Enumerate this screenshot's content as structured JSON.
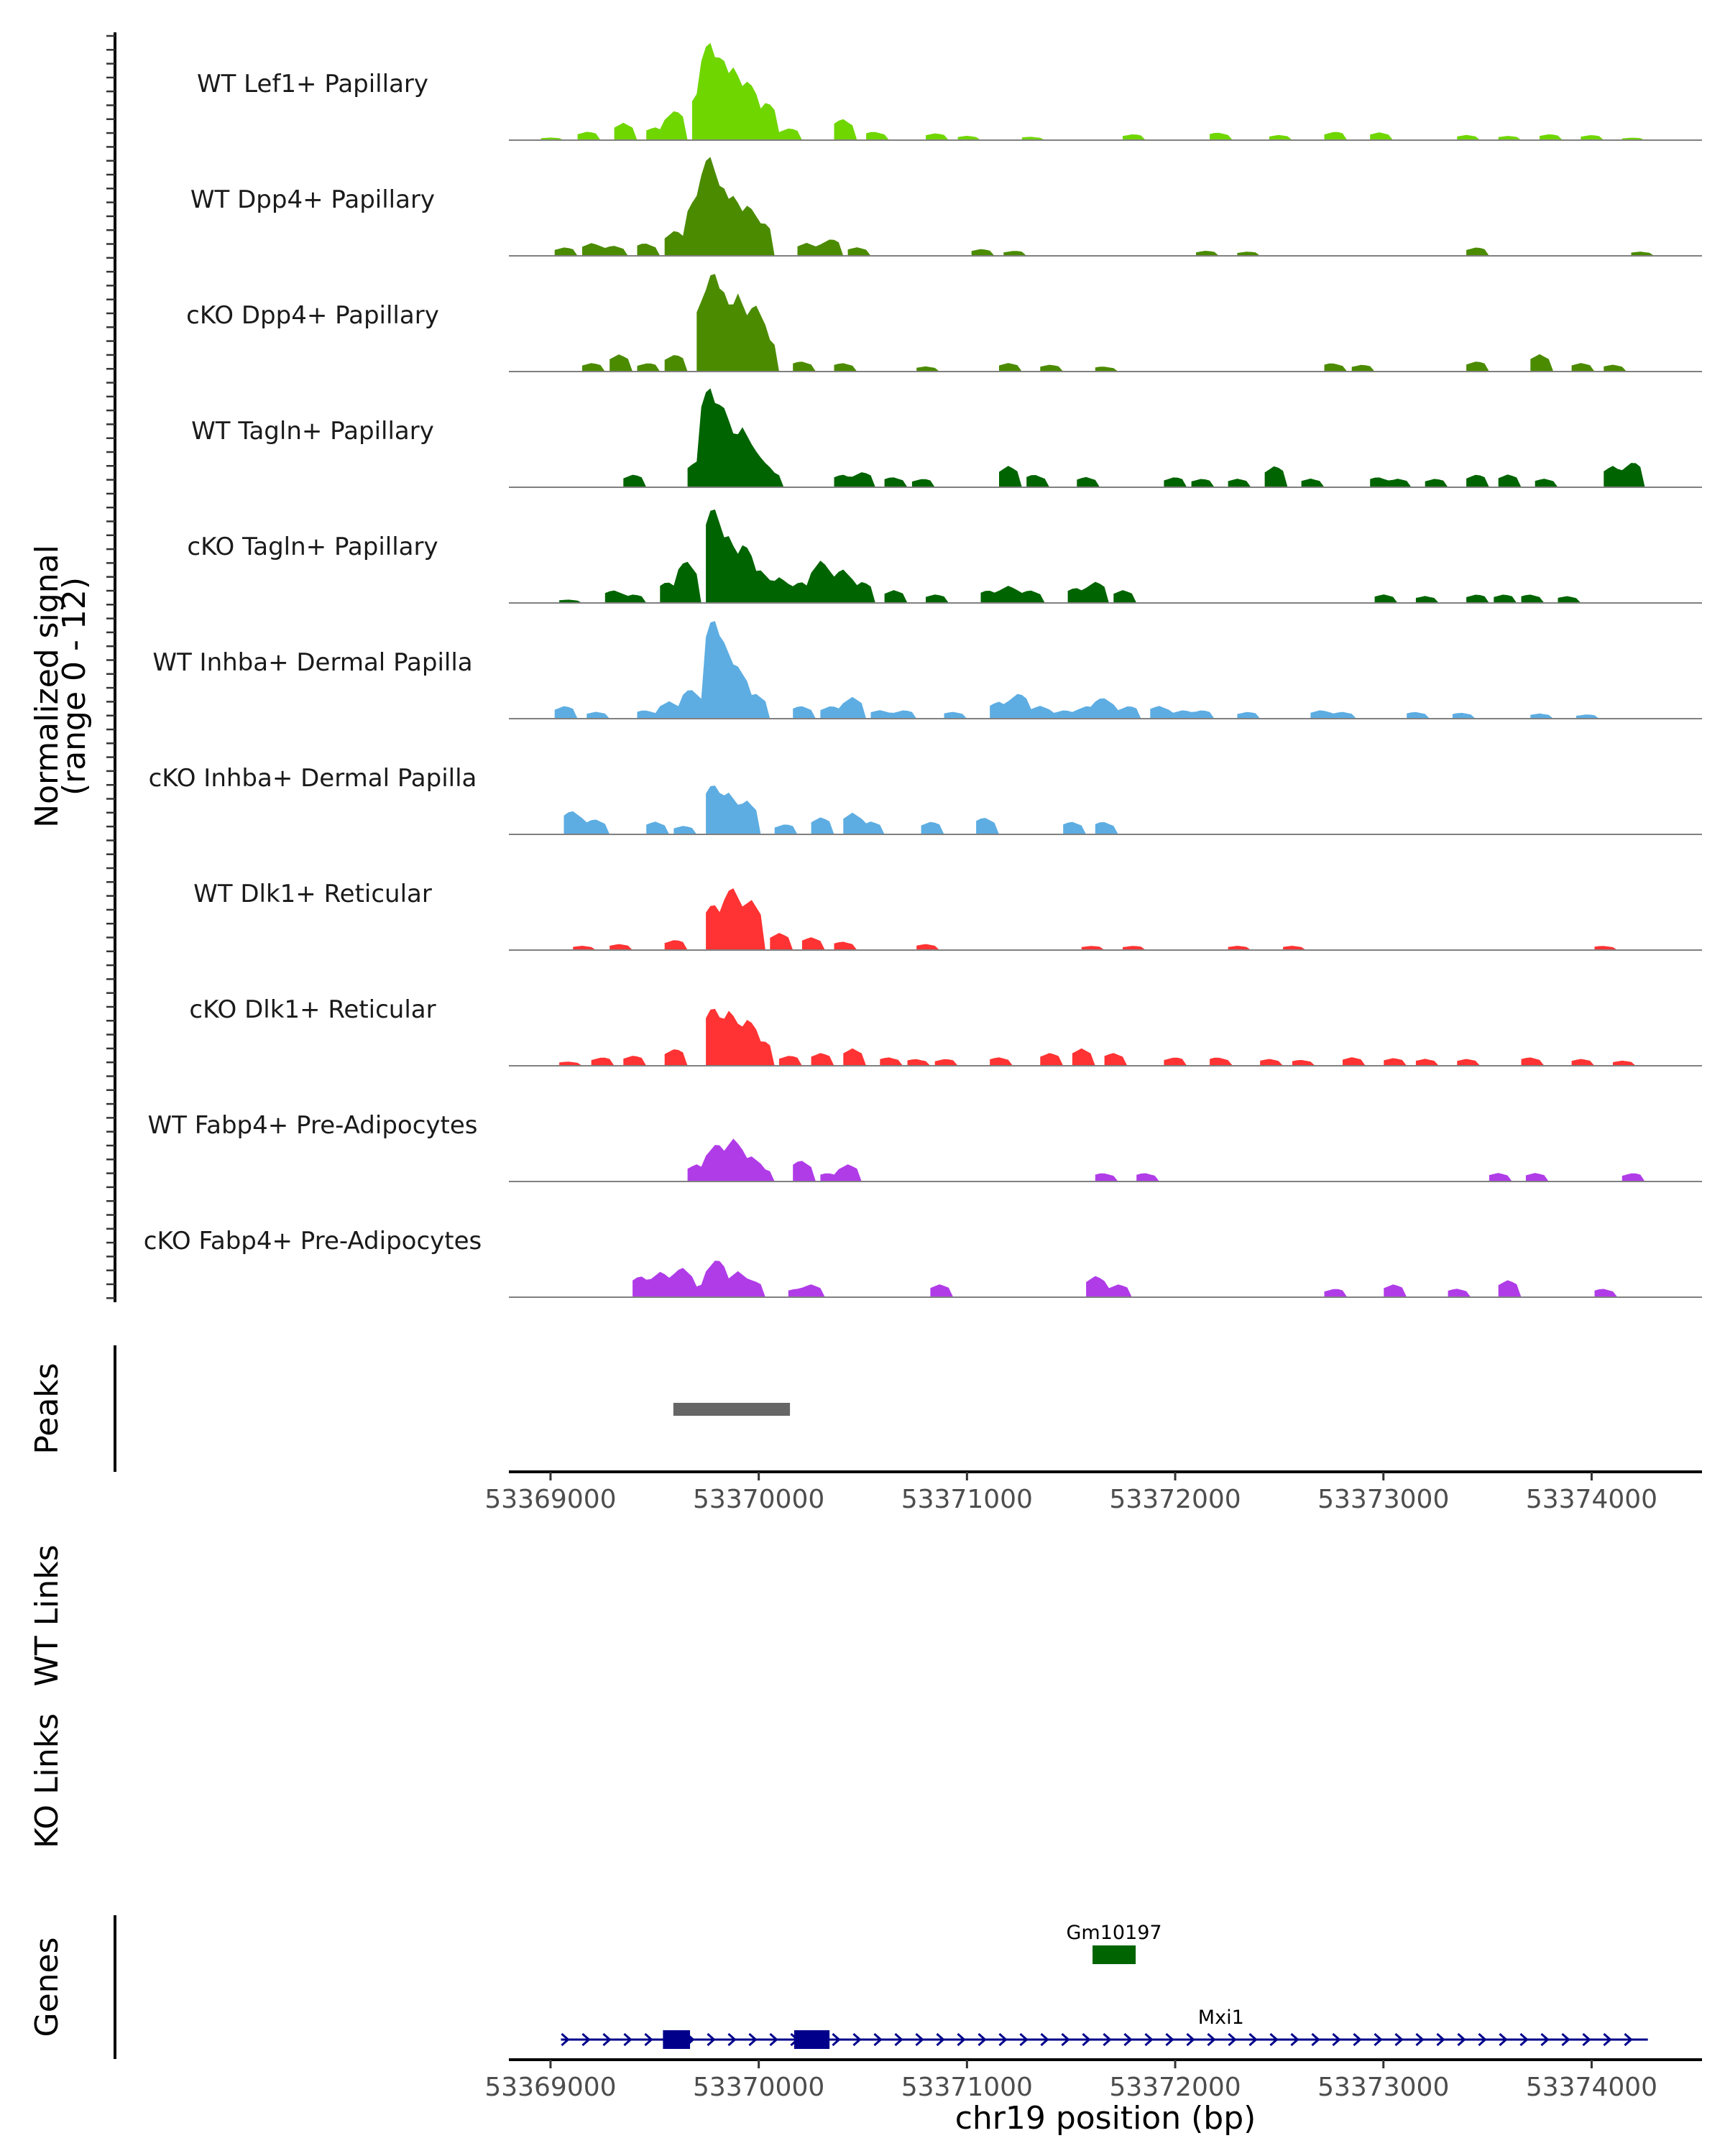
{
  "chart_data": {
    "type": "area",
    "chromosome": "chr19",
    "xlabel": "chr19 position (bp)",
    "xlim": [
      53368800,
      53374530
    ],
    "x_ticks": [
      53369000,
      53370000,
      53371000,
      53372000,
      53373000,
      53374000
    ],
    "x_tick_labels": [
      "53369000",
      "53370000",
      "53371000",
      "53372000",
      "53373000",
      "53374000"
    ],
    "ylabel": "Normalized signal",
    "ylabel_range": "(range 0 - 12)",
    "ylim": [
      0,
      12
    ],
    "tracks": [
      {
        "name": "WT Lef1+ Papillary",
        "color": "#6fd600",
        "peaks": [
          [
            53369000,
            0.3
          ],
          [
            53369180,
            1.0
          ],
          [
            53369350,
            2.0
          ],
          [
            53369500,
            1.5
          ],
          [
            53369600,
            3.5
          ],
          [
            53369720,
            6.0
          ],
          [
            53369760,
            11.8
          ],
          [
            53369820,
            10.0
          ],
          [
            53369880,
            8.5
          ],
          [
            53369950,
            7.0
          ],
          [
            53370040,
            4.5
          ],
          [
            53370150,
            1.4
          ],
          [
            53370400,
            2.5
          ],
          [
            53370550,
            1.0
          ],
          [
            53370850,
            0.8
          ],
          [
            53371000,
            0.5
          ],
          [
            53371300,
            0.4
          ],
          [
            53371800,
            0.7
          ],
          [
            53372200,
            0.9
          ],
          [
            53372500,
            0.6
          ],
          [
            53372770,
            1.0
          ],
          [
            53372980,
            0.9
          ],
          [
            53373400,
            0.6
          ],
          [
            53373600,
            0.5
          ],
          [
            53373800,
            0.7
          ],
          [
            53374000,
            0.6
          ],
          [
            53374200,
            0.3
          ]
        ]
      },
      {
        "name": "WT Dpp4+ Papillary",
        "color": "#4b8b00",
        "peaks": [
          [
            53369070,
            1.0
          ],
          [
            53369200,
            1.5
          ],
          [
            53369300,
            1.2
          ],
          [
            53369450,
            1.5
          ],
          [
            53369600,
            3.0
          ],
          [
            53369700,
            7.0
          ],
          [
            53369760,
            12.0
          ],
          [
            53369820,
            8.5
          ],
          [
            53369880,
            7.0
          ],
          [
            53369950,
            6.0
          ],
          [
            53370020,
            4.0
          ],
          [
            53370230,
            1.5
          ],
          [
            53370350,
            2.0
          ],
          [
            53370470,
            1.0
          ],
          [
            53371070,
            0.8
          ],
          [
            53371230,
            0.6
          ],
          [
            53372150,
            0.6
          ],
          [
            53372350,
            0.5
          ],
          [
            53373450,
            1.0
          ],
          [
            53374230,
            0.5
          ]
        ]
      },
      {
        "name": "cKO Dpp4+ Papillary",
        "color": "#4b8b00",
        "peaks": [
          [
            53369200,
            1.0
          ],
          [
            53369330,
            2.0
          ],
          [
            53369470,
            1.0
          ],
          [
            53369600,
            2.0
          ],
          [
            53369740,
            9.0
          ],
          [
            53369780,
            12.0
          ],
          [
            53369820,
            10.0
          ],
          [
            53369900,
            9.0
          ],
          [
            53369980,
            8.0
          ],
          [
            53370040,
            4.0
          ],
          [
            53370200,
            1.2
          ],
          [
            53370400,
            1.0
          ],
          [
            53370800,
            0.6
          ],
          [
            53371200,
            1.0
          ],
          [
            53371400,
            0.8
          ],
          [
            53371650,
            0.6
          ],
          [
            53372750,
            1.0
          ],
          [
            53372900,
            0.8
          ],
          [
            53373450,
            1.2
          ],
          [
            53373750,
            2.0
          ],
          [
            53373950,
            1.0
          ],
          [
            53374100,
            0.8
          ]
        ]
      },
      {
        "name": "WT Tagln+ Papillary",
        "color": "#006400",
        "peaks": [
          [
            53369400,
            1.5
          ],
          [
            53369700,
            3.0
          ],
          [
            53369760,
            12.0
          ],
          [
            53369820,
            10.0
          ],
          [
            53369860,
            7.0
          ],
          [
            53369920,
            7.0
          ],
          [
            53369960,
            5.0
          ],
          [
            53370000,
            3.5
          ],
          [
            53370050,
            2.0
          ],
          [
            53370400,
            1.5
          ],
          [
            53370500,
            1.8
          ],
          [
            53370640,
            1.2
          ],
          [
            53370790,
            1.0
          ],
          [
            53371200,
            2.5
          ],
          [
            53371320,
            1.5
          ],
          [
            53371570,
            1.2
          ],
          [
            53372000,
            1.2
          ],
          [
            53372130,
            1.0
          ],
          [
            53372300,
            1.0
          ],
          [
            53372480,
            2.5
          ],
          [
            53372650,
            1.0
          ],
          [
            53372970,
            1.2
          ],
          [
            53373070,
            1.0
          ],
          [
            53373250,
            1.0
          ],
          [
            53373450,
            1.5
          ],
          [
            53373600,
            1.5
          ],
          [
            53373770,
            1.0
          ],
          [
            53374100,
            2.5
          ],
          [
            53374200,
            3.0
          ]
        ]
      },
      {
        "name": "cKO Tagln+ Papillary",
        "color": "#006400",
        "peaks": [
          [
            53369080,
            0.4
          ],
          [
            53369300,
            1.5
          ],
          [
            53369400,
            1.0
          ],
          [
            53369560,
            2.5
          ],
          [
            53369650,
            5.0
          ],
          [
            53369780,
            11.5
          ],
          [
            53369850,
            8.0
          ],
          [
            53369930,
            7.0
          ],
          [
            53370000,
            4.0
          ],
          [
            53370100,
            3.0
          ],
          [
            53370200,
            2.5
          ],
          [
            53370300,
            5.0
          ],
          [
            53370400,
            4.0
          ],
          [
            53370500,
            2.5
          ],
          [
            53370650,
            1.5
          ],
          [
            53370850,
            1.0
          ],
          [
            53371100,
            1.5
          ],
          [
            53371200,
            2.0
          ],
          [
            53371300,
            1.5
          ],
          [
            53371520,
            1.8
          ],
          [
            53371620,
            2.5
          ],
          [
            53371750,
            1.5
          ],
          [
            53373000,
            1.0
          ],
          [
            53373200,
            0.8
          ],
          [
            53373450,
            1.0
          ],
          [
            53373580,
            1.0
          ],
          [
            53373700,
            1.0
          ],
          [
            53373880,
            0.8
          ]
        ]
      },
      {
        "name": "WT Inhba+ Dermal Papilla",
        "color": "#5dade2",
        "peaks": [
          [
            53369070,
            1.5
          ],
          [
            53369220,
            0.8
          ],
          [
            53369450,
            1.0
          ],
          [
            53369570,
            2.0
          ],
          [
            53369670,
            3.5
          ],
          [
            53369780,
            12.0
          ],
          [
            53369830,
            9.0
          ],
          [
            53369900,
            6.0
          ],
          [
            53369980,
            3.0
          ],
          [
            53370200,
            1.5
          ],
          [
            53370350,
            1.5
          ],
          [
            53370450,
            2.5
          ],
          [
            53370580,
            1.0
          ],
          [
            53370700,
            1.0
          ],
          [
            53370930,
            0.8
          ],
          [
            53371150,
            2.0
          ],
          [
            53371250,
            3.0
          ],
          [
            53371350,
            1.5
          ],
          [
            53371470,
            1.0
          ],
          [
            53371580,
            1.5
          ],
          [
            53371650,
            2.5
          ],
          [
            53371780,
            1.5
          ],
          [
            53371920,
            1.5
          ],
          [
            53372040,
            1.0
          ],
          [
            53372130,
            1.0
          ],
          [
            53372350,
            0.8
          ],
          [
            53372700,
            1.0
          ],
          [
            53372800,
            0.8
          ],
          [
            53373150,
            0.8
          ],
          [
            53373370,
            0.7
          ],
          [
            53373750,
            0.6
          ],
          [
            53373980,
            0.5
          ]
        ]
      },
      {
        "name": "cKO Inhba+ Dermal Papilla",
        "color": "#5dade2",
        "peaks": [
          [
            53369100,
            2.8
          ],
          [
            53369210,
            1.8
          ],
          [
            53369500,
            1.5
          ],
          [
            53369640,
            1.0
          ],
          [
            53369780,
            6.0
          ],
          [
            53369850,
            5.0
          ],
          [
            53369940,
            4.0
          ],
          [
            53370130,
            1.2
          ],
          [
            53370300,
            2.0
          ],
          [
            53370450,
            2.5
          ],
          [
            53370540,
            1.5
          ],
          [
            53370830,
            1.5
          ],
          [
            53371080,
            2.0
          ],
          [
            53371500,
            1.5
          ],
          [
            53371650,
            1.5
          ]
        ]
      },
      {
        "name": "WT Dlk1+ Reticular",
        "color": "#ff3333",
        "peaks": [
          [
            53369150,
            0.5
          ],
          [
            53369330,
            0.7
          ],
          [
            53369600,
            1.2
          ],
          [
            53369780,
            5.5
          ],
          [
            53369870,
            7.5
          ],
          [
            53369960,
            6.0
          ],
          [
            53370100,
            2.0
          ],
          [
            53370250,
            1.5
          ],
          [
            53370400,
            1.0
          ],
          [
            53370800,
            0.7
          ],
          [
            53371600,
            0.5
          ],
          [
            53371800,
            0.5
          ],
          [
            53372300,
            0.5
          ],
          [
            53372560,
            0.5
          ],
          [
            53374050,
            0.5
          ]
        ]
      },
      {
        "name": "cKO Dlk1+ Reticular",
        "color": "#ff3333",
        "peaks": [
          [
            53369080,
            0.5
          ],
          [
            53369250,
            1.0
          ],
          [
            53369400,
            1.2
          ],
          [
            53369600,
            2.0
          ],
          [
            53369780,
            7.0
          ],
          [
            53369860,
            6.5
          ],
          [
            53369950,
            5.5
          ],
          [
            53370020,
            3.0
          ],
          [
            53370150,
            1.2
          ],
          [
            53370300,
            1.5
          ],
          [
            53370450,
            2.0
          ],
          [
            53370620,
            1.0
          ],
          [
            53370750,
            0.8
          ],
          [
            53370900,
            0.8
          ],
          [
            53371150,
            1.0
          ],
          [
            53371400,
            1.5
          ],
          [
            53371550,
            2.0
          ],
          [
            53371700,
            1.5
          ],
          [
            53372000,
            1.0
          ],
          [
            53372200,
            1.0
          ],
          [
            53372450,
            0.8
          ],
          [
            53372600,
            0.7
          ],
          [
            53372850,
            1.0
          ],
          [
            53373050,
            0.9
          ],
          [
            53373200,
            0.8
          ],
          [
            53373400,
            0.8
          ],
          [
            53373700,
            1.0
          ],
          [
            53373950,
            0.8
          ],
          [
            53374150,
            0.6
          ]
        ]
      },
      {
        "name": "WT Fabp4+ Pre-Adipocytes",
        "color": "#b03ce8",
        "peaks": [
          [
            53369700,
            2.0
          ],
          [
            53369800,
            4.5
          ],
          [
            53369880,
            5.0
          ],
          [
            53369960,
            3.0
          ],
          [
            53370020,
            1.5
          ],
          [
            53370200,
            2.5
          ],
          [
            53370330,
            1.0
          ],
          [
            53370430,
            2.0
          ],
          [
            53371650,
            1.0
          ],
          [
            53371850,
            1.0
          ],
          [
            53373550,
            1.0
          ],
          [
            53373730,
            1.0
          ],
          [
            53374200,
            1.0
          ]
        ]
      },
      {
        "name": "cKO Fabp4+ Pre-Adipocytes",
        "color": "#b03ce8",
        "peaks": [
          [
            53369430,
            2.5
          ],
          [
            53369530,
            3.0
          ],
          [
            53369630,
            3.5
          ],
          [
            53369730,
            1.5
          ],
          [
            53369800,
            4.5
          ],
          [
            53369900,
            3.0
          ],
          [
            53369970,
            2.0
          ],
          [
            53370180,
            1.0
          ],
          [
            53370250,
            1.5
          ],
          [
            53370870,
            1.5
          ],
          [
            53371620,
            2.5
          ],
          [
            53371730,
            1.5
          ],
          [
            53372770,
            1.0
          ],
          [
            53373050,
            1.5
          ],
          [
            53373350,
            1.0
          ],
          [
            53373600,
            2.0
          ],
          [
            53374050,
            1.0
          ]
        ]
      }
    ],
    "peaks_track": {
      "label": "Peaks",
      "regions": [
        [
          53369590,
          53370150
        ]
      ]
    },
    "links_tracks": [
      "WT Links",
      "KO Links"
    ],
    "genes_track": {
      "label": "Genes",
      "genes": [
        {
          "name": "Gm10197",
          "start": 53371610,
          "end": 53371700,
          "strand": "+",
          "color": "#006400",
          "exons": [
            [
              53371610,
              53371700
            ]
          ]
        },
        {
          "name": "Mxi1",
          "start": 53369050,
          "end": 53374270,
          "strand": "+",
          "color": "#00008b",
          "exons": [
            [
              53369540,
              53369670
            ],
            [
              53370170,
              53370340
            ]
          ]
        }
      ]
    }
  }
}
